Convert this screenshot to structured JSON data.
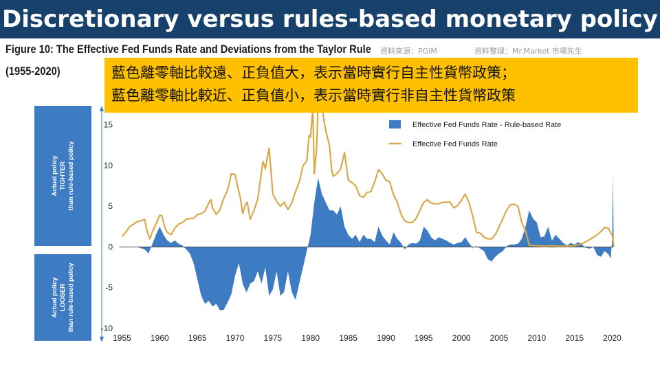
{
  "banner_title": "Discretionary versus rules-based monetary policy",
  "figure_title": "Figure 10: The Effective Fed Funds Rate and Deviations from the Taylor Rule",
  "figure_years": "(1955-2020)",
  "credits": {
    "source": "資料來源：PGIM",
    "compiled": "資料整理：Mr.Market 市場先生"
  },
  "note": {
    "line1": "藍色離零軸比較遠、正負值大，表示當時實行自主性貨幣政策；",
    "line2": "藍色離零軸比較近、正負值小，表示當時實行非自主性貨幣政策"
  },
  "side_labels": {
    "tighter": [
      "Actual policy",
      "TIGHTER",
      "than rule-based policy"
    ],
    "looser": [
      "Actual policy",
      "LOOSER",
      "than rule-based policy"
    ]
  },
  "colors": {
    "banner": "#17406b",
    "note_bg": "#ffc000",
    "deviation_area": "#3d7cc2",
    "fed_funds_line": "#d9a84a",
    "side_box": "#3d7cc2"
  },
  "chart_data": {
    "type": "area",
    "title": "",
    "xlabel": "",
    "ylabel": "",
    "xlim": [
      1954.5,
      2020.5
    ],
    "ylim": [
      -10,
      17
    ],
    "x_ticks": [
      1955,
      1960,
      1965,
      1970,
      1975,
      1980,
      1985,
      1990,
      1995,
      2000,
      2005,
      2010,
      2015,
      2020
    ],
    "y_ticks": [
      -10,
      -5,
      0,
      5,
      10,
      15
    ],
    "legend_position": "top-right",
    "series": [
      {
        "name": "Effective Fed Funds Rate - Rule-based Rate",
        "type": "area",
        "points": [
          [
            1955.0,
            0
          ],
          [
            1957.0,
            0
          ],
          [
            1958.0,
            -0.3
          ],
          [
            1958.5,
            -0.8
          ],
          [
            1959.0,
            0.3
          ],
          [
            1959.5,
            1.5
          ],
          [
            1960.0,
            2.5
          ],
          [
            1960.5,
            1.5
          ],
          [
            1961.0,
            0.8
          ],
          [
            1961.5,
            0.5
          ],
          [
            1962.0,
            0.8
          ],
          [
            1962.5,
            0.4
          ],
          [
            1963.0,
            0.2
          ],
          [
            1963.5,
            -0.3
          ],
          [
            1964.0,
            -0.8
          ],
          [
            1964.5,
            -2.0
          ],
          [
            1965.0,
            -4.0
          ],
          [
            1965.5,
            -6.0
          ],
          [
            1966.0,
            -7.0
          ],
          [
            1966.5,
            -6.6
          ],
          [
            1967.0,
            -7.3
          ],
          [
            1967.5,
            -7.0
          ],
          [
            1968.0,
            -7.8
          ],
          [
            1968.5,
            -7.7
          ],
          [
            1969.0,
            -6.8
          ],
          [
            1969.5,
            -5.8
          ],
          [
            1970.0,
            -3.5
          ],
          [
            1970.5,
            -2.0
          ],
          [
            1971.0,
            -4.5
          ],
          [
            1971.5,
            -5.6
          ],
          [
            1972.0,
            -4.5
          ],
          [
            1972.5,
            -4.2
          ],
          [
            1973.0,
            -3.0
          ],
          [
            1973.5,
            -4.5
          ],
          [
            1974.0,
            -2.5
          ],
          [
            1974.5,
            -6.0
          ],
          [
            1975.0,
            -5.2
          ],
          [
            1975.5,
            -3.0
          ],
          [
            1976.0,
            -6.0
          ],
          [
            1976.5,
            -5.5
          ],
          [
            1977.0,
            -3.0
          ],
          [
            1977.5,
            -5.5
          ],
          [
            1978.0,
            -6.5
          ],
          [
            1978.5,
            -4.5
          ],
          [
            1979.0,
            -2.5
          ],
          [
            1979.5,
            -0.5
          ],
          [
            1980.0,
            1.5
          ],
          [
            1980.5,
            5.5
          ],
          [
            1981.0,
            8.5
          ],
          [
            1981.5,
            6.5
          ],
          [
            1982.0,
            5.5
          ],
          [
            1982.5,
            4.5
          ],
          [
            1983.0,
            4.5
          ],
          [
            1983.5,
            4.0
          ],
          [
            1984.0,
            5.0
          ],
          [
            1984.5,
            2.5
          ],
          [
            1985.0,
            1.5
          ],
          [
            1985.5,
            1.0
          ],
          [
            1986.0,
            1.5
          ],
          [
            1986.5,
            0.6
          ],
          [
            1987.0,
            1.5
          ],
          [
            1987.5,
            1.0
          ],
          [
            1988.0,
            1.0
          ],
          [
            1988.5,
            0.6
          ],
          [
            1989.0,
            2.5
          ],
          [
            1989.5,
            1.4
          ],
          [
            1990.0,
            0.8
          ],
          [
            1990.5,
            0.3
          ],
          [
            1991.0,
            1.8
          ],
          [
            1991.5,
            1.0
          ],
          [
            1992.0,
            0.5
          ],
          [
            1992.5,
            -0.3
          ],
          [
            1993.0,
            0.3
          ],
          [
            1993.5,
            0.5
          ],
          [
            1994.0,
            0.4
          ],
          [
            1994.5,
            0.8
          ],
          [
            1995.0,
            2.5
          ],
          [
            1995.5,
            2.0
          ],
          [
            1996.0,
            1.2
          ],
          [
            1996.5,
            0.8
          ],
          [
            1997.0,
            1.2
          ],
          [
            1997.5,
            1.0
          ],
          [
            1998.0,
            0.8
          ],
          [
            1998.5,
            0.5
          ],
          [
            1999.0,
            0.3
          ],
          [
            1999.5,
            0.5
          ],
          [
            2000.0,
            0.6
          ],
          [
            2000.5,
            1.2
          ],
          [
            2001.0,
            0.5
          ],
          [
            2001.5,
            -0.1
          ],
          [
            2002.0,
            0.1
          ],
          [
            2002.5,
            -0.2
          ],
          [
            2003.0,
            -0.5
          ],
          [
            2003.5,
            -1.5
          ],
          [
            2004.0,
            -1.8
          ],
          [
            2004.5,
            -1.2
          ],
          [
            2005.0,
            -0.8
          ],
          [
            2005.5,
            -0.5
          ],
          [
            2006.0,
            0.1
          ],
          [
            2006.5,
            0.3
          ],
          [
            2007.0,
            0.3
          ],
          [
            2007.5,
            0.4
          ],
          [
            2008.0,
            1.0
          ],
          [
            2008.5,
            2.5
          ],
          [
            2009.0,
            4.5
          ],
          [
            2009.5,
            3.5
          ],
          [
            2010.0,
            3.0
          ],
          [
            2010.5,
            1.2
          ],
          [
            2011.0,
            1.3
          ],
          [
            2011.5,
            2.5
          ],
          [
            2012.0,
            0.8
          ],
          [
            2012.5,
            1.5
          ],
          [
            2013.0,
            1.0
          ],
          [
            2013.5,
            0.5
          ],
          [
            2014.0,
            0.2
          ],
          [
            2014.5,
            0.5
          ],
          [
            2015.0,
            0.3
          ],
          [
            2015.5,
            0.6
          ],
          [
            2016.0,
            0.3
          ],
          [
            2016.5,
            -0.1
          ],
          [
            2017.0,
            -0.2
          ],
          [
            2017.5,
            0.0
          ],
          [
            2018.0,
            -1.0
          ],
          [
            2018.5,
            -1.2
          ],
          [
            2019.0,
            -0.5
          ],
          [
            2019.5,
            -0.9
          ],
          [
            2019.8,
            -1.4
          ],
          [
            2020.0,
            1.0
          ],
          [
            2020.1,
            9.0
          ],
          [
            2020.2,
            0.0
          ]
        ]
      },
      {
        "name": "Effective Fed Funds Rate",
        "type": "line",
        "points": [
          [
            1955.0,
            1.3
          ],
          [
            1955.5,
            1.8
          ],
          [
            1956.0,
            2.5
          ],
          [
            1956.5,
            2.8
          ],
          [
            1957.0,
            3.1
          ],
          [
            1957.5,
            3.2
          ],
          [
            1958.0,
            3.4
          ],
          [
            1958.3,
            2.0
          ],
          [
            1958.7,
            1.0
          ],
          [
            1959.0,
            1.8
          ],
          [
            1959.5,
            2.8
          ],
          [
            1960.0,
            3.9
          ],
          [
            1960.3,
            3.8
          ],
          [
            1960.7,
            2.3
          ],
          [
            1961.0,
            1.8
          ],
          [
            1961.5,
            1.5
          ],
          [
            1962.0,
            2.3
          ],
          [
            1962.5,
            2.8
          ],
          [
            1963.0,
            3.0
          ],
          [
            1963.5,
            3.4
          ],
          [
            1964.0,
            3.5
          ],
          [
            1964.5,
            3.5
          ],
          [
            1965.0,
            4.0
          ],
          [
            1965.5,
            4.1
          ],
          [
            1966.0,
            4.4
          ],
          [
            1966.5,
            5.4
          ],
          [
            1966.8,
            5.8
          ],
          [
            1967.0,
            4.8
          ],
          [
            1967.5,
            4.0
          ],
          [
            1968.0,
            4.6
          ],
          [
            1968.5,
            6.0
          ],
          [
            1969.0,
            7.0
          ],
          [
            1969.5,
            9.0
          ],
          [
            1970.0,
            8.9
          ],
          [
            1970.3,
            7.6
          ],
          [
            1970.7,
            6.0
          ],
          [
            1971.0,
            4.1
          ],
          [
            1971.3,
            5.0
          ],
          [
            1971.6,
            5.5
          ],
          [
            1972.0,
            3.4
          ],
          [
            1972.5,
            4.5
          ],
          [
            1973.0,
            5.9
          ],
          [
            1973.4,
            8.6
          ],
          [
            1973.7,
            10.5
          ],
          [
            1974.0,
            9.6
          ],
          [
            1974.5,
            12.1
          ],
          [
            1975.0,
            6.5
          ],
          [
            1975.5,
            5.6
          ],
          [
            1976.0,
            5.0
          ],
          [
            1976.5,
            5.5
          ],
          [
            1977.0,
            4.6
          ],
          [
            1977.5,
            5.4
          ],
          [
            1978.0,
            6.8
          ],
          [
            1978.5,
            8.0
          ],
          [
            1979.0,
            10.0
          ],
          [
            1979.5,
            10.5
          ],
          [
            1979.8,
            13.7
          ],
          [
            1980.0,
            13.5
          ],
          [
            1980.3,
            17.0
          ],
          [
            1980.5,
            9.0
          ],
          [
            1980.8,
            12.0
          ],
          [
            1981.0,
            17.6
          ],
          [
            1981.2,
            17.2
          ],
          [
            1981.5,
            19.1
          ],
          [
            1981.7,
            16.0
          ],
          [
            1982.0,
            14.3
          ],
          [
            1982.5,
            12.5
          ],
          [
            1982.8,
            9.5
          ],
          [
            1983.0,
            8.7
          ],
          [
            1983.5,
            9.0
          ],
          [
            1984.0,
            9.6
          ],
          [
            1984.5,
            11.6
          ],
          [
            1985.0,
            8.2
          ],
          [
            1985.5,
            7.9
          ],
          [
            1986.0,
            7.5
          ],
          [
            1986.5,
            6.3
          ],
          [
            1987.0,
            6.1
          ],
          [
            1987.5,
            6.7
          ],
          [
            1988.0,
            6.8
          ],
          [
            1988.5,
            8.0
          ],
          [
            1989.0,
            9.5
          ],
          [
            1989.5,
            9.0
          ],
          [
            1990.0,
            8.2
          ],
          [
            1990.5,
            8.0
          ],
          [
            1991.0,
            6.4
          ],
          [
            1991.5,
            5.5
          ],
          [
            1992.0,
            4.0
          ],
          [
            1992.5,
            3.2
          ],
          [
            1993.0,
            3.0
          ],
          [
            1993.5,
            3.0
          ],
          [
            1994.0,
            3.5
          ],
          [
            1994.5,
            4.5
          ],
          [
            1995.0,
            5.5
          ],
          [
            1995.5,
            5.8
          ],
          [
            1996.0,
            5.4
          ],
          [
            1996.5,
            5.3
          ],
          [
            1997.0,
            5.3
          ],
          [
            1997.5,
            5.5
          ],
          [
            1998.0,
            5.5
          ],
          [
            1998.5,
            5.5
          ],
          [
            1999.0,
            4.8
          ],
          [
            1999.5,
            5.1
          ],
          [
            2000.0,
            5.7
          ],
          [
            2000.5,
            6.5
          ],
          [
            2001.0,
            5.5
          ],
          [
            2001.5,
            3.8
          ],
          [
            2002.0,
            1.8
          ],
          [
            2002.5,
            1.7
          ],
          [
            2003.0,
            1.2
          ],
          [
            2003.5,
            1.0
          ],
          [
            2004.0,
            1.0
          ],
          [
            2004.5,
            1.5
          ],
          [
            2005.0,
            2.5
          ],
          [
            2005.5,
            3.5
          ],
          [
            2006.0,
            4.5
          ],
          [
            2006.5,
            5.2
          ],
          [
            2007.0,
            5.25
          ],
          [
            2007.5,
            5.0
          ],
          [
            2008.0,
            3.0
          ],
          [
            2008.5,
            2.0
          ],
          [
            2009.0,
            0.2
          ],
          [
            2010.0,
            0.15
          ],
          [
            2011.0,
            0.1
          ],
          [
            2012.0,
            0.15
          ],
          [
            2013.0,
            0.1
          ],
          [
            2014.0,
            0.1
          ],
          [
            2015.0,
            0.15
          ],
          [
            2016.0,
            0.4
          ],
          [
            2017.0,
            0.9
          ],
          [
            2017.5,
            1.2
          ],
          [
            2018.0,
            1.5
          ],
          [
            2018.5,
            1.9
          ],
          [
            2019.0,
            2.4
          ],
          [
            2019.5,
            2.3
          ],
          [
            2019.8,
            1.7
          ],
          [
            2020.0,
            1.5
          ],
          [
            2020.2,
            0.1
          ]
        ]
      }
    ]
  }
}
